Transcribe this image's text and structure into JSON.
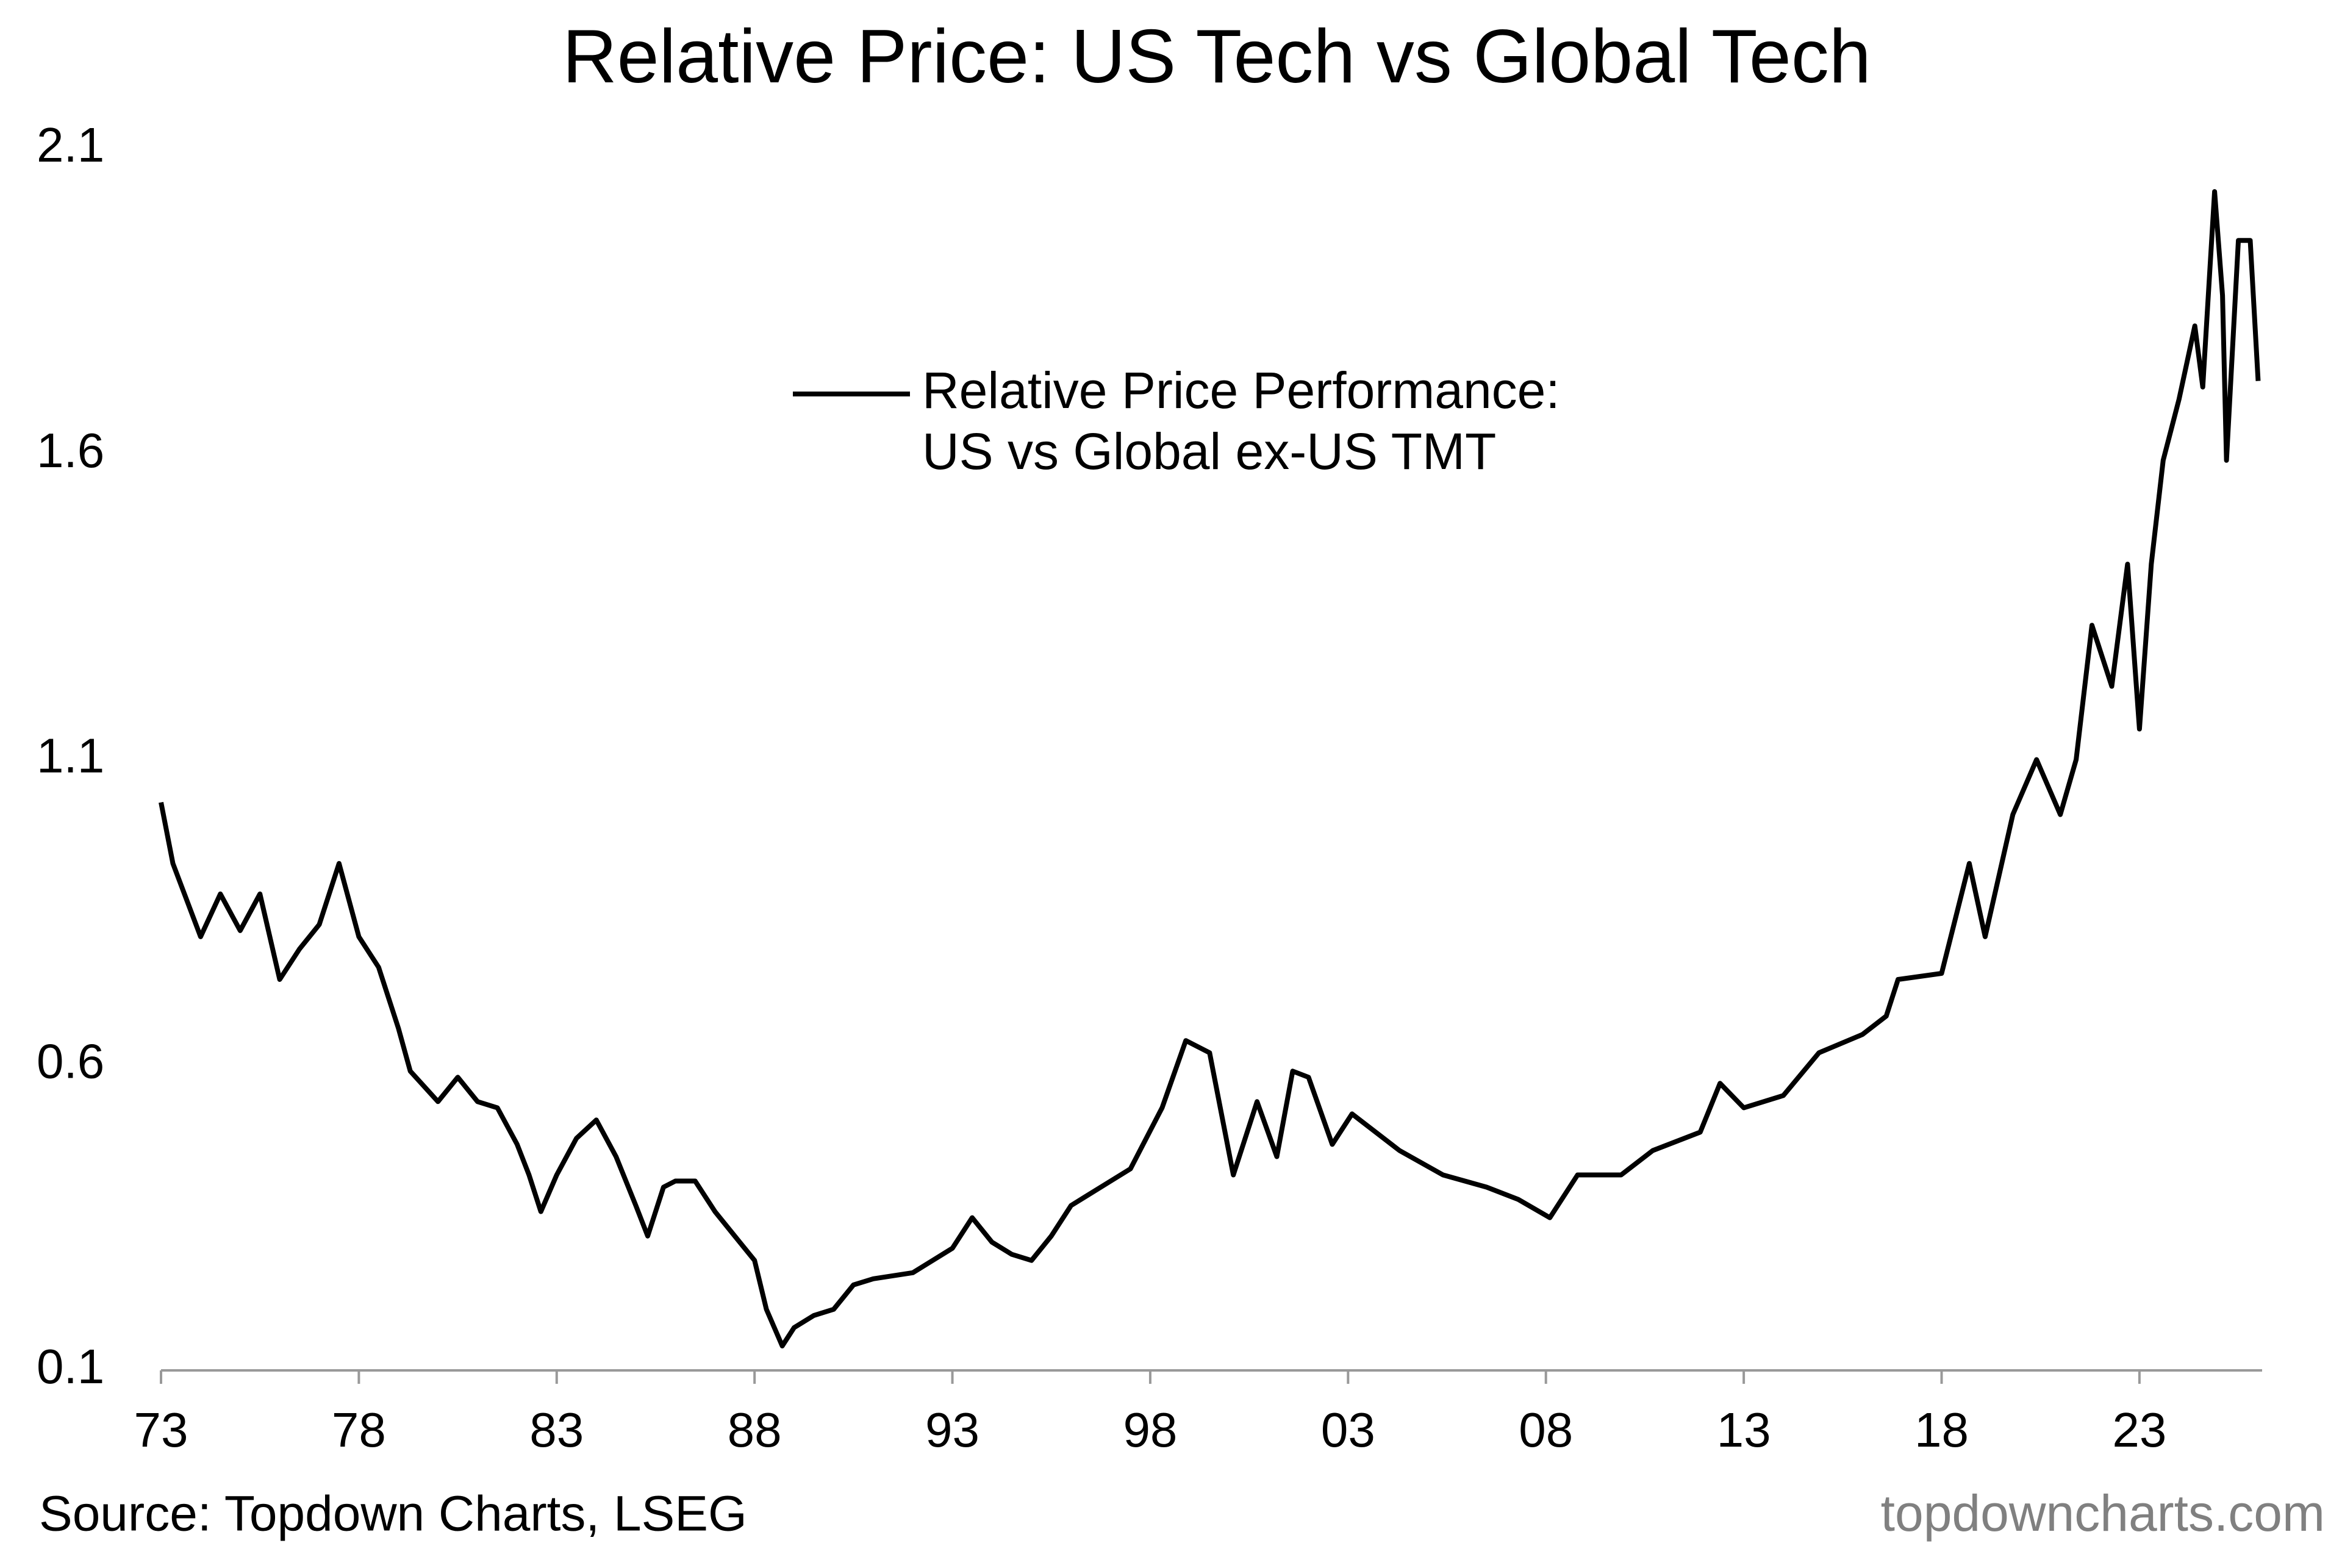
{
  "chart_data": {
    "type": "line",
    "title": "Relative Price: US Tech vs Global Tech",
    "source": "Source: Topdown Charts, LSEG",
    "watermark": "topdowncharts.com",
    "x": [
      1973.0,
      1973.3,
      1974.0,
      1974.5,
      1975.0,
      1975.5,
      1976.0,
      1976.5,
      1977.0,
      1977.5,
      1978.0,
      1978.5,
      1979.0,
      1979.3,
      1980.0,
      1980.5,
      1981.0,
      1981.5,
      1982.0,
      1982.3,
      1982.6,
      1983.0,
      1983.5,
      1984.0,
      1984.5,
      1985.0,
      1985.3,
      1985.7,
      1986.0,
      1986.5,
      1987.0,
      1987.5,
      1988.0,
      1988.3,
      1988.7,
      1989.0,
      1989.5,
      1990.0,
      1990.5,
      1991.0,
      1992.0,
      1993.0,
      1993.5,
      1994.0,
      1994.5,
      1995.0,
      1995.5,
      1996.0,
      1997.0,
      1997.5,
      1998.3,
      1998.9,
      1999.5,
      2000.1,
      2000.7,
      2001.2,
      2001.6,
      2002.0,
      2002.6,
      2003.1,
      2004.3,
      2005.4,
      2006.5,
      2007.3,
      2008.1,
      2008.8,
      2009.9,
      2010.7,
      2011.9,
      2012.4,
      2013.0,
      2014.0,
      2014.9,
      2016.0,
      2016.6,
      2016.9,
      2018.0,
      2018.7,
      2019.1,
      2019.8,
      2020.4,
      2021.0,
      2021.4,
      2021.8,
      2022.3,
      2022.7,
      2023.0,
      2023.3,
      2023.6,
      2024.0,
      2024.4,
      2024.6,
      2024.9,
      2025.1,
      2025.2,
      2025.5,
      2025.8,
      2026.0
    ],
    "series": [
      {
        "name": "Relative Price Performance:\nUS vs Global ex-US TMT",
        "color": "#000000",
        "values": [
          1.03,
          0.93,
          0.81,
          0.88,
          0.82,
          0.88,
          0.74,
          0.79,
          0.83,
          0.93,
          0.81,
          0.76,
          0.66,
          0.59,
          0.54,
          0.58,
          0.54,
          0.53,
          0.47,
          0.42,
          0.36,
          0.42,
          0.48,
          0.51,
          0.45,
          0.37,
          0.32,
          0.4,
          0.41,
          0.41,
          0.36,
          0.32,
          0.28,
          0.2,
          0.14,
          0.17,
          0.19,
          0.2,
          0.24,
          0.25,
          0.26,
          0.3,
          0.35,
          0.31,
          0.29,
          0.28,
          0.32,
          0.37,
          0.41,
          0.43,
          0.53,
          0.64,
          0.62,
          0.42,
          0.54,
          0.45,
          0.59,
          0.58,
          0.47,
          0.52,
          0.46,
          0.42,
          0.4,
          0.38,
          0.35,
          0.42,
          0.42,
          0.46,
          0.49,
          0.57,
          0.53,
          0.55,
          0.62,
          0.65,
          0.68,
          0.74,
          0.75,
          0.93,
          0.81,
          1.01,
          1.1,
          1.01,
          1.1,
          1.32,
          1.22,
          1.42,
          1.15,
          1.42,
          1.59,
          1.69,
          1.81,
          1.71,
          2.03,
          1.86,
          1.59,
          1.95,
          1.95,
          1.72
        ]
      }
    ],
    "xlim": [
      1973,
      2026.1
    ],
    "xticks": [
      {
        "value": 1973,
        "label": "73"
      },
      {
        "value": 1978,
        "label": "78"
      },
      {
        "value": 1983,
        "label": "83"
      },
      {
        "value": 1988,
        "label": "88"
      },
      {
        "value": 1993,
        "label": "93"
      },
      {
        "value": 1998,
        "label": "98"
      },
      {
        "value": 2003,
        "label": "03"
      },
      {
        "value": 2008,
        "label": "08"
      },
      {
        "value": 2013,
        "label": "13"
      },
      {
        "value": 2018,
        "label": "18"
      },
      {
        "value": 2023,
        "label": "23"
      }
    ],
    "ylim": [
      0.1,
      2.1
    ],
    "yticks": [
      0.1,
      0.6,
      1.1,
      1.6,
      2.1
    ],
    "grid": false
  }
}
